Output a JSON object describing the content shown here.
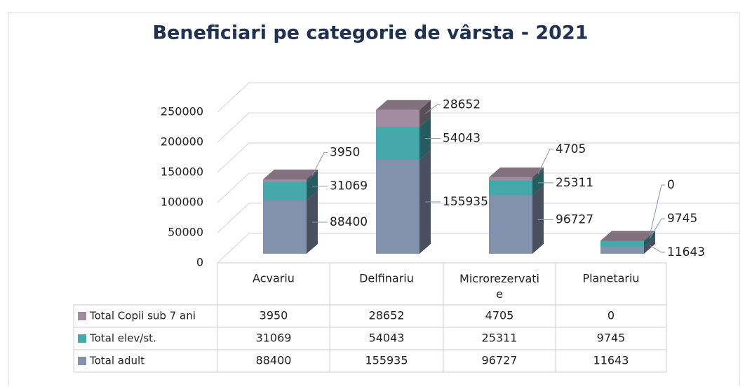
{
  "chart_data": {
    "type": "bar3d_stacked",
    "title": "Beneficiari pe categorie de vârsta - 2021",
    "categories": [
      "Acvariu",
      "Delfinariu",
      "Microrezervatie",
      "Planetariu"
    ],
    "series": [
      {
        "name": "Total adult",
        "color": "#8292ad",
        "values": [
          88400,
          155935,
          96727,
          11643
        ]
      },
      {
        "name": "Total elev/st.",
        "color": "#45a8aa",
        "values": [
          31069,
          54043,
          25311,
          9745
        ]
      },
      {
        "name": "Total Copii sub 7 ani",
        "color": "#a28c9f",
        "values": [
          3950,
          28652,
          4705,
          0
        ]
      }
    ],
    "ylim": [
      0,
      250000
    ],
    "yticks": [
      0,
      50000,
      100000,
      150000,
      200000,
      250000
    ],
    "grid": true
  }
}
